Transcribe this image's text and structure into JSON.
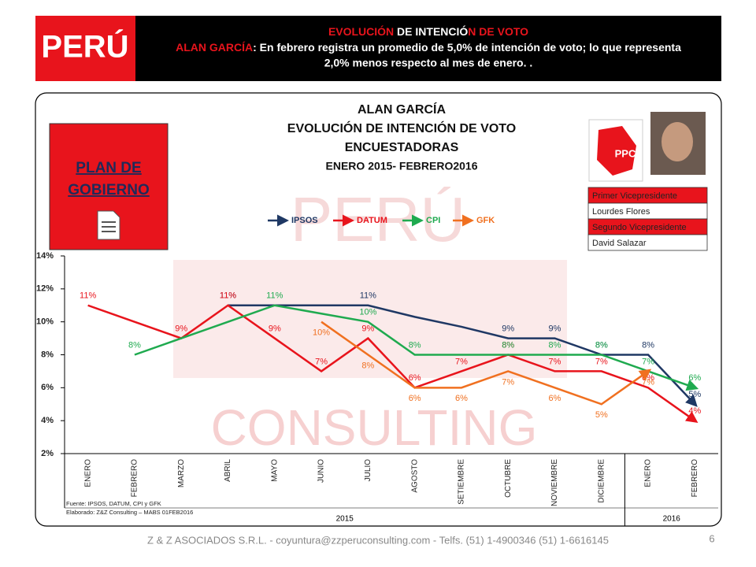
{
  "header": {
    "badge": "PERÚ",
    "title_parts": [
      "EVOLUCIÓN",
      " DE INTENCIÓ",
      "N DE VOTO"
    ],
    "subject": "ALAN GARCÍA",
    "summary_line1": ": En febrero registra un promedio de 5,0% de intención de voto; lo que representa",
    "summary_line2": "2,0% menos respecto al mes de enero. ."
  },
  "watermark": [
    "PERÚ",
    "CONSULTING"
  ],
  "plan": [
    "PLAN DE",
    "GOBIERNO"
  ],
  "logo_text": "PPC",
  "vice_table": {
    "rows": [
      "Primer Vicepresidente",
      "Lourdes Flores",
      "Segundo Vicepresidente",
      "David Salazar"
    ]
  },
  "chart_data": {
    "type": "line",
    "title_lines": [
      "ALAN GARCÍA",
      "EVOLUCIÓN  DE INTENCIÓN DE VOTO",
      "ENCUESTADORAS",
      "ENERO 2015- FEBRERO2016"
    ],
    "categories": [
      "ENERO",
      "FEBRERO",
      "MARZO",
      "ABRIL",
      "MAYO",
      "JUNIO",
      "JULIO",
      "AGOSTO",
      "SETIEMBRE",
      "OCTUBRE",
      "NOVIEMBRE",
      "DICIEMBRE",
      "ENERO",
      "FEBRERO"
    ],
    "years": [
      "2015",
      "2016"
    ],
    "ylim": [
      2,
      14
    ],
    "yticks": [
      {
        "value": 2,
        "label": "2%"
      },
      {
        "value": 4,
        "label": "4%"
      },
      {
        "value": 6,
        "label": "6%"
      },
      {
        "value": 8,
        "label": "8%"
      },
      {
        "value": 10,
        "label": "10%"
      },
      {
        "value": 12,
        "label": "12%"
      },
      {
        "value": 14,
        "label": "14%"
      }
    ],
    "grid": false,
    "series": [
      {
        "name": "IPSOS",
        "color": "#1f3864",
        "values": [
          null,
          null,
          null,
          11,
          11,
          11,
          11,
          10.3,
          9.7,
          9,
          9,
          8,
          8,
          5
        ],
        "value_labels": [
          null,
          null,
          null,
          "11%",
          null,
          null,
          "11%",
          null,
          null,
          "9%",
          "9%",
          "8%",
          "8%",
          "5%"
        ]
      },
      {
        "name": "DATUM",
        "color": "#e8141c",
        "values": [
          11,
          10,
          9,
          11,
          9,
          7,
          9,
          6,
          7,
          8,
          7,
          7,
          6,
          4
        ],
        "value_labels": [
          "11%",
          null,
          "9%",
          "11%",
          "9%",
          "7%",
          "9%",
          "6%",
          "7%",
          "8%",
          "7%",
          "7%",
          "6%",
          "4%"
        ]
      },
      {
        "name": "CPI",
        "color": "#1faa4f",
        "values": [
          null,
          8,
          9,
          10,
          11,
          10.5,
          10,
          8,
          8,
          8,
          8,
          8,
          7,
          6
        ],
        "value_labels": [
          null,
          "8%",
          null,
          null,
          "11%",
          null,
          "10%",
          "8%",
          null,
          "8%",
          "8%",
          "8%",
          "7%",
          "6%"
        ]
      },
      {
        "name": "GFK",
        "color": "#f07020",
        "values": [
          null,
          null,
          null,
          null,
          null,
          10,
          8,
          6,
          6,
          7,
          6,
          5,
          7,
          null
        ],
        "value_labels": [
          null,
          null,
          null,
          null,
          null,
          "10%",
          "8%",
          "6%",
          "6%",
          "7%",
          "6%",
          "5%",
          "7%",
          null
        ]
      }
    ],
    "notes": [
      "Fuente: IPSOS,  DATUM, CPI y GFK",
      "Elaborado:  Z&Z Consulting – MABS 01FEB2016"
    ]
  },
  "footer": {
    "text": "Z & Z ASOCIADOS S.R.L. - coyuntura@zzperuconsulting.com  - Telfs. (51) 1-4900346  (51) 1-6616145",
    "page": "6"
  }
}
